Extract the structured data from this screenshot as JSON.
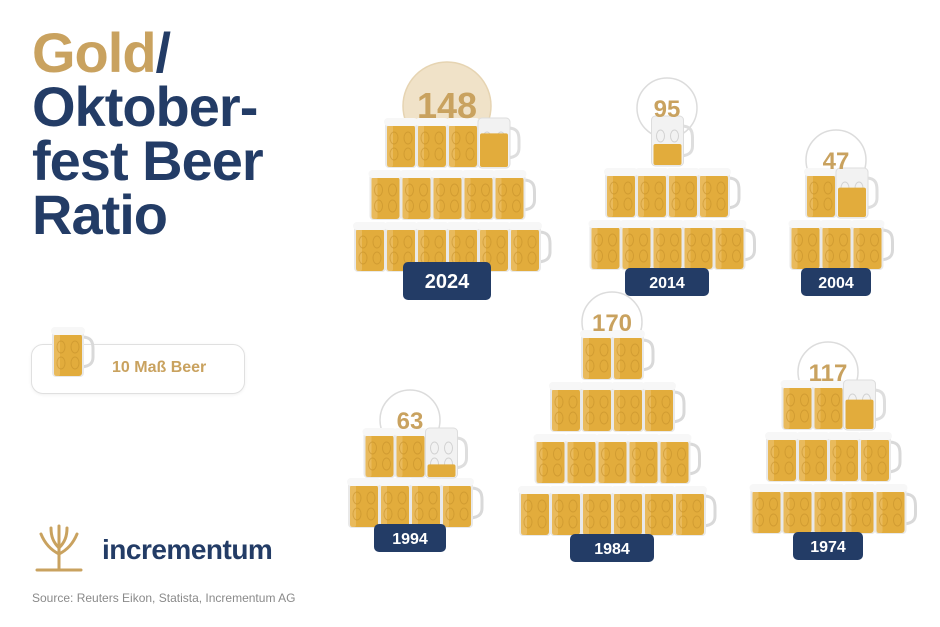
{
  "title": {
    "gold": "Gold",
    "slash": "/",
    "line2": "Oktober-",
    "line3": "fest Beer",
    "line4": "Ratio"
  },
  "legend": {
    "label": "10 Maß Beer",
    "unit_value": 10
  },
  "brand": {
    "name": "incrementum"
  },
  "source": "Source: Reuters Eikon, Statista, Incrementum AG",
  "colors": {
    "navy": "#233c66",
    "gold": "#c9a25f",
    "beer": "#e2ac3c",
    "foam": "#f6f6f6",
    "badge": "#233c66",
    "highlight": "#f0e2c8"
  },
  "icons": {
    "mug": "beer-mug-icon",
    "logo": "tree-logo-icon"
  },
  "chart_data": {
    "type": "pictograph",
    "unit": "10 Maß Beer per mug",
    "categories": [
      "2024",
      "2014",
      "2004",
      "1994",
      "1984",
      "1974"
    ],
    "values": [
      148,
      95,
      47,
      63,
      170,
      117
    ],
    "highlight": "2024"
  }
}
